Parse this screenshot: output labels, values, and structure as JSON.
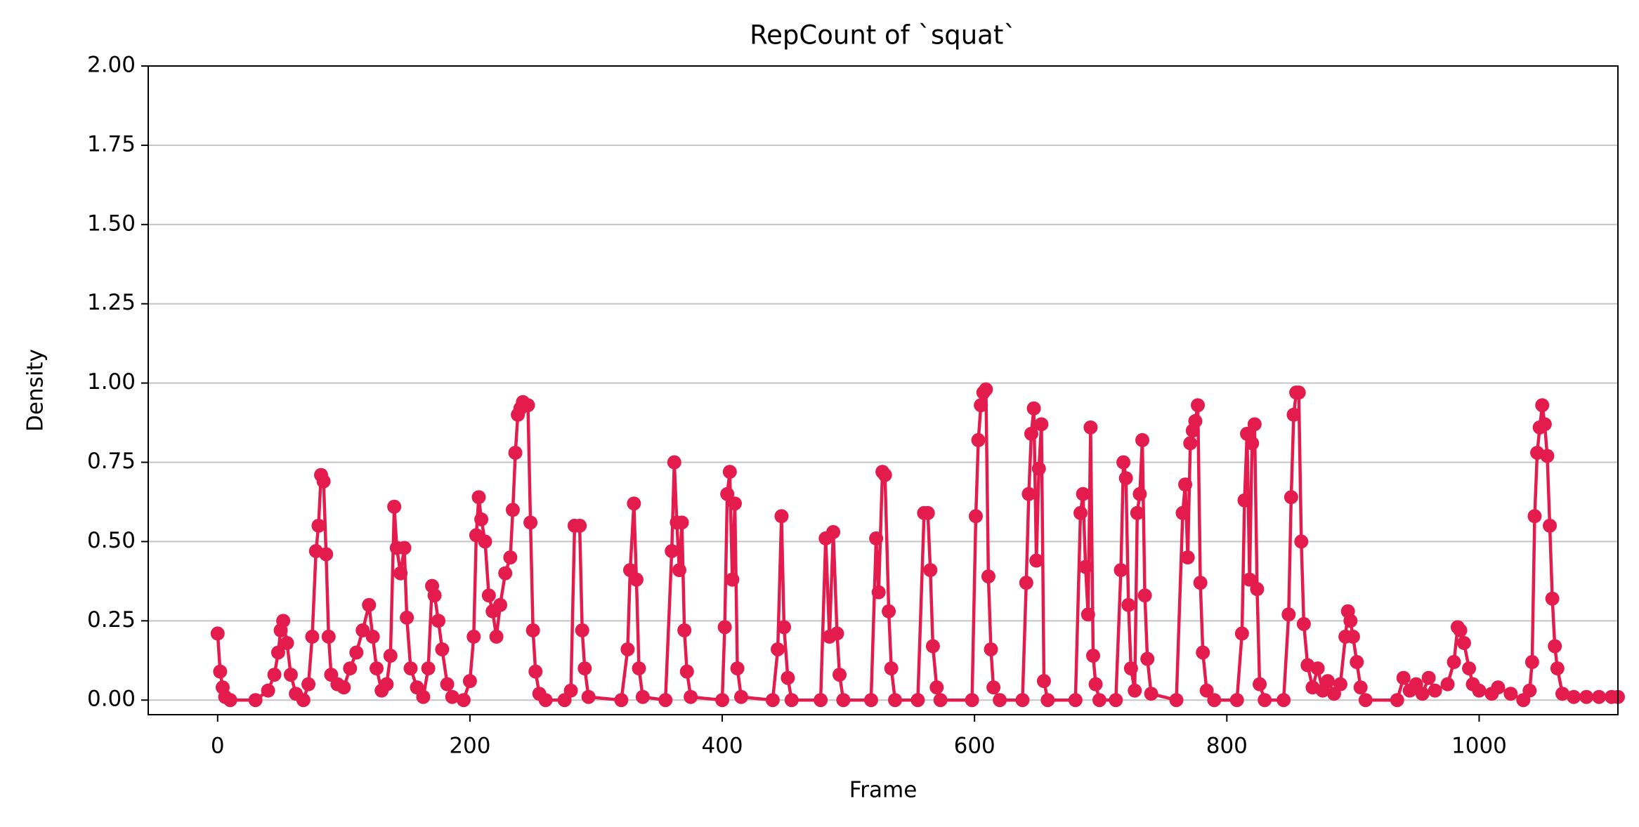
{
  "chart_data": {
    "type": "line",
    "title": "RepCount of `squat`",
    "x_label": "Frame",
    "y_label": "Density",
    "xlim": [
      -55,
      1110
    ],
    "ylim": [
      -0.046,
      2.0
    ],
    "xticks": [
      0,
      200,
      400,
      600,
      800,
      1000
    ],
    "yticks": [
      {
        "value": 0,
        "label": "0.00"
      },
      {
        "value": 0.25,
        "label": "0.25"
      },
      {
        "value": 0.5,
        "label": "0.50"
      },
      {
        "value": 0.75,
        "label": "0.75"
      },
      {
        "value": 1.0,
        "label": "1.00"
      },
      {
        "value": 1.25,
        "label": "1.25"
      },
      {
        "value": 1.5,
        "label": "1.50"
      },
      {
        "value": 1.75,
        "label": "1.75"
      },
      {
        "value": 2.0,
        "label": "2.00"
      }
    ],
    "grid": "y",
    "color": "#e31c4d",
    "x": [
      0,
      2,
      4,
      6,
      10,
      30,
      40,
      45,
      48,
      50,
      52,
      55,
      58,
      62,
      68,
      72,
      75,
      78,
      80,
      82,
      84,
      86,
      88,
      90,
      95,
      100,
      105,
      110,
      115,
      120,
      123,
      126,
      130,
      134,
      137,
      140,
      142,
      145,
      148,
      150,
      153,
      158,
      163,
      167,
      170,
      172,
      175,
      178,
      182,
      186,
      195,
      200,
      203,
      205,
      207,
      209,
      212,
      215,
      218,
      221,
      224,
      228,
      232,
      234,
      236,
      238,
      240,
      242,
      246,
      248,
      250,
      252,
      255,
      260,
      275,
      280,
      283,
      287,
      289,
      291,
      294,
      320,
      325,
      327,
      330,
      332,
      334,
      337,
      355,
      360,
      362,
      364,
      366,
      368,
      370,
      372,
      375,
      400,
      402,
      404,
      406,
      408,
      410,
      412,
      415,
      440,
      444,
      447,
      449,
      452,
      455,
      478,
      482,
      485,
      488,
      491,
      493,
      496,
      518,
      522,
      524,
      527,
      529,
      532,
      534,
      537,
      555,
      560,
      563,
      565,
      567,
      570,
      573,
      598,
      601,
      603,
      605,
      607,
      609,
      611,
      613,
      615,
      620,
      638,
      641,
      643,
      645,
      647,
      649,
      651,
      653,
      655,
      658,
      680,
      684,
      686,
      688,
      690,
      692,
      694,
      696,
      699,
      712,
      716,
      718,
      720,
      722,
      724,
      727,
      729,
      731,
      733,
      735,
      737,
      740,
      760,
      765,
      767,
      769,
      771,
      773,
      775,
      777,
      779,
      781,
      784,
      790,
      808,
      812,
      814,
      816,
      818,
      820,
      822,
      824,
      826,
      830,
      845,
      849,
      851,
      853,
      855,
      857,
      859,
      861,
      864,
      868,
      872,
      876,
      880,
      885,
      890,
      894,
      896,
      898,
      900,
      903,
      906,
      910,
      935,
      940,
      945,
      950,
      955,
      960,
      965,
      975,
      980,
      983,
      985,
      988,
      992,
      995,
      1000,
      1010,
      1015,
      1025,
      1035,
      1040,
      1042,
      1044,
      1046,
      1048,
      1050,
      1052,
      1054,
      1056,
      1058,
      1060,
      1062,
      1066,
      1075,
      1085,
      1095,
      1105,
      1110
    ],
    "values": [
      0.21,
      0.09,
      0.04,
      0.01,
      0,
      0,
      0.03,
      0.08,
      0.15,
      0.22,
      0.25,
      0.18,
      0.08,
      0.02,
      0,
      0.05,
      0.2,
      0.47,
      0.55,
      0.71,
      0.69,
      0.46,
      0.2,
      0.08,
      0.05,
      0.04,
      0.1,
      0.15,
      0.22,
      0.3,
      0.2,
      0.1,
      0.03,
      0.05,
      0.14,
      0.61,
      0.48,
      0.4,
      0.48,
      0.26,
      0.1,
      0.04,
      0.01,
      0.1,
      0.36,
      0.33,
      0.25,
      0.16,
      0.05,
      0.01,
      0,
      0.06,
      0.2,
      0.52,
      0.64,
      0.57,
      0.5,
      0.33,
      0.28,
      0.2,
      0.3,
      0.4,
      0.45,
      0.6,
      0.78,
      0.9,
      0.92,
      0.94,
      0.93,
      0.56,
      0.22,
      0.09,
      0.02,
      0,
      0,
      0.03,
      0.55,
      0.55,
      0.22,
      0.1,
      0.01,
      0,
      0.16,
      0.41,
      0.62,
      0.38,
      0.1,
      0.01,
      0,
      0.47,
      0.75,
      0.56,
      0.41,
      0.56,
      0.22,
      0.09,
      0.01,
      0,
      0.23,
      0.65,
      0.72,
      0.38,
      0.62,
      0.1,
      0.01,
      0,
      0.16,
      0.58,
      0.23,
      0.07,
      0,
      0,
      0.51,
      0.2,
      0.53,
      0.21,
      0.08,
      0,
      0,
      0.51,
      0.34,
      0.72,
      0.71,
      0.28,
      0.1,
      0,
      0,
      0.59,
      0.59,
      0.41,
      0.17,
      0.04,
      0,
      0,
      0.58,
      0.82,
      0.93,
      0.97,
      0.98,
      0.39,
      0.16,
      0.04,
      0,
      0,
      0.37,
      0.65,
      0.84,
      0.92,
      0.44,
      0.73,
      0.87,
      0.06,
      0,
      0,
      0.59,
      0.65,
      0.42,
      0.27,
      0.86,
      0.14,
      0.05,
      0,
      0,
      0.41,
      0.75,
      0.7,
      0.3,
      0.1,
      0.03,
      0.59,
      0.65,
      0.82,
      0.33,
      0.13,
      0.02,
      0,
      0.59,
      0.68,
      0.45,
      0.81,
      0.85,
      0.88,
      0.93,
      0.37,
      0.15,
      0.03,
      0,
      0,
      0.21,
      0.63,
      0.84,
      0.38,
      0.81,
      0.87,
      0.35,
      0.05,
      0,
      0,
      0.27,
      0.64,
      0.9,
      0.97,
      0.97,
      0.5,
      0.24,
      0.11,
      0.04,
      0.1,
      0.03,
      0.06,
      0.02,
      0.05,
      0.2,
      0.28,
      0.25,
      0.2,
      0.12,
      0.04,
      0,
      0,
      0.07,
      0.03,
      0.05,
      0.02,
      0.07,
      0.03,
      0.05,
      0.12,
      0.23,
      0.22,
      0.18,
      0.1,
      0.05,
      0.03,
      0.02,
      0.04,
      0.02,
      0,
      0.03,
      0.12,
      0.58,
      0.78,
      0.86,
      0.93,
      0.87,
      0.77,
      0.55,
      0.32,
      0.17,
      0.1,
      0.02,
      0.01,
      0.01,
      0.01,
      0.01,
      0.01
    ]
  }
}
